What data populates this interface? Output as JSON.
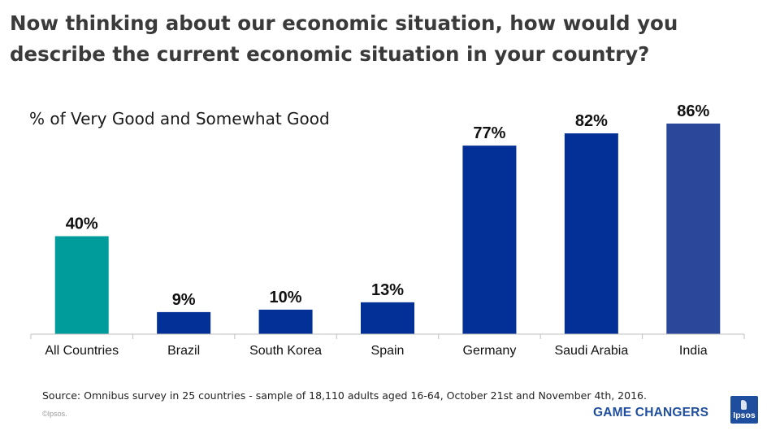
{
  "title_line1": "Now thinking about our economic situation, how would you",
  "title_line2": "describe the current economic situation in your country?",
  "subtitle": "% of Very Good and Somewhat Good",
  "footer": {
    "source": "Source: Omnibus survey in 25 countries - sample of 18,110 adults aged 16-64,  October 21st and November 4th, 2016.",
    "copyright": "©Ipsos.",
    "brand": "GAME CHANGERS",
    "logo_text": "Ipsos"
  },
  "colors": {
    "total_bar": "#009c9b",
    "country_bar": "#033096",
    "india_bar": "#2b4799",
    "brand": "#1f4e9e"
  },
  "chart_data": {
    "type": "bar",
    "title": "",
    "xlabel": "",
    "ylabel": "",
    "ylim": [
      0,
      100
    ],
    "grid": false,
    "categories": [
      "All Countries",
      "Brazil",
      "South Korea",
      "Spain",
      "Germany",
      "Saudi Arabia",
      "India"
    ],
    "values": [
      40,
      9,
      10,
      13,
      77,
      82,
      86
    ],
    "labels": [
      "40%",
      "9%",
      "10%",
      "13%",
      "77%",
      "82%",
      "86%"
    ],
    "bar_color_keys": [
      "total_bar",
      "country_bar",
      "country_bar",
      "country_bar",
      "country_bar",
      "country_bar",
      "india_bar"
    ]
  }
}
